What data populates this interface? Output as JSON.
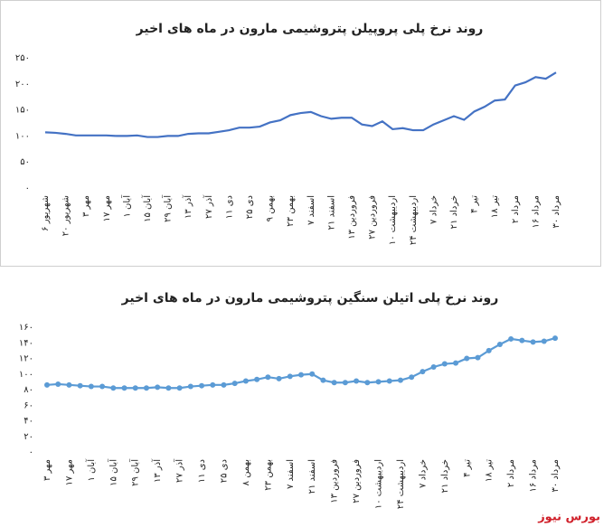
{
  "chart_data": [
    {
      "type": "line",
      "title": "روند نرخ پلی پروپیلن پتروشیمی مارون در ماه های اخیر",
      "categories": [
        "۶ شهریور",
        null,
        "۲۰ شهریور",
        null,
        "۳ مهر",
        null,
        "۱۷ مهر",
        null,
        "۱ آبان",
        null,
        "۱۵ آبان",
        null,
        "۲۹ آبان",
        null,
        "۱۳ آذر",
        null,
        "۲۷ آذر",
        null,
        "۱۱ دی",
        null,
        "۲۵ دی",
        null,
        "۹ بهمن",
        null,
        "۲۳ بهمن",
        null,
        "۷ اسفند",
        null,
        "۲۱ اسفند",
        null,
        "۱۳ فروردین",
        null,
        "۲۷ فروردین",
        null,
        "۱۰ اردیبهشت",
        null,
        "۲۴ اردیبهشت",
        null,
        "۷ خرداد",
        null,
        "۲۱ خرداد",
        null,
        "۴ تیر",
        null,
        "۱۸ تیر",
        null,
        "۲ مرداد",
        null,
        "۱۶ مرداد",
        null,
        "۳۰ مرداد"
      ],
      "values": [
        107,
        106,
        104,
        101,
        101,
        101,
        101,
        100,
        100,
        101,
        98,
        98,
        100,
        100,
        104,
        105,
        105,
        108,
        111,
        116,
        116,
        118,
        126,
        130,
        140,
        144,
        146,
        138,
        133,
        135,
        135,
        122,
        119,
        128,
        113,
        115,
        111,
        111,
        122,
        130,
        138,
        131,
        147,
        156,
        168,
        170,
        197,
        203,
        213,
        210,
        222
      ],
      "color": "#4472c4",
      "markers": false,
      "grid": false,
      "ylim": [
        0,
        250
      ],
      "yticks": [
        {
          "value": 0,
          "label": "۰"
        },
        {
          "value": 50,
          "label": "۵۰"
        },
        {
          "value": 100,
          "label": "۱۰۰"
        },
        {
          "value": 150,
          "label": "۱۵۰"
        },
        {
          "value": 200,
          "label": "۲۰۰"
        },
        {
          "value": 250,
          "label": "۲۵۰"
        }
      ]
    },
    {
      "type": "line",
      "title": "روند نرخ پلی اتیلن سنگین پتروشیمی مارون در ماه های اخیر",
      "categories": [
        "۳ مهر",
        null,
        "۱۷ مهر",
        null,
        "۱ آبان",
        null,
        "۱۵ آبان",
        null,
        "۲۹ آبان",
        null,
        "۱۳ آذر",
        null,
        "۲۷ آذر",
        null,
        "۱۱ دی",
        null,
        "۲۵ دی",
        null,
        "۸ بهمن",
        null,
        "۲۳ بهمن",
        null,
        "۷ اسفند",
        null,
        "۲۱ اسفند",
        null,
        "۱۳ فروردین",
        null,
        "۲۷ فروردین",
        null,
        "۱۰ اردیبهشت",
        null,
        "۲۴ اردیبهشت",
        null,
        "۷ خرداد",
        null,
        "۲۱ خرداد",
        null,
        "۴ تیر",
        null,
        "۱۸ تیر",
        null,
        "۲ مرداد",
        null,
        "۱۶ مرداد",
        null,
        "۳۰ مرداد"
      ],
      "values": [
        86,
        87,
        86,
        85,
        84,
        84,
        82,
        82,
        82,
        82,
        83,
        82,
        82,
        84,
        85,
        86,
        86,
        88,
        91,
        93,
        96,
        94,
        97,
        99,
        100,
        92,
        89,
        89,
        91,
        89,
        90,
        91,
        92,
        96,
        103,
        109,
        113,
        114,
        120,
        121,
        130,
        138,
        145,
        143,
        141,
        142,
        146
      ],
      "color": "#5b9bd5",
      "markers": true,
      "grid": false,
      "ylim": [
        0,
        160
      ],
      "yticks": [
        {
          "value": 0,
          "label": "۰"
        },
        {
          "value": 20,
          "label": "۲۰"
        },
        {
          "value": 40,
          "label": "۴۰"
        },
        {
          "value": 60,
          "label": "۶۰"
        },
        {
          "value": 80,
          "label": "۸۰"
        },
        {
          "value": 100,
          "label": "۱۰۰"
        },
        {
          "value": 120,
          "label": "۱۲۰"
        },
        {
          "value": 140,
          "label": "۱۴۰"
        },
        {
          "value": 160,
          "label": "۱۶۰"
        }
      ]
    }
  ],
  "brand": "بورس نیوز"
}
